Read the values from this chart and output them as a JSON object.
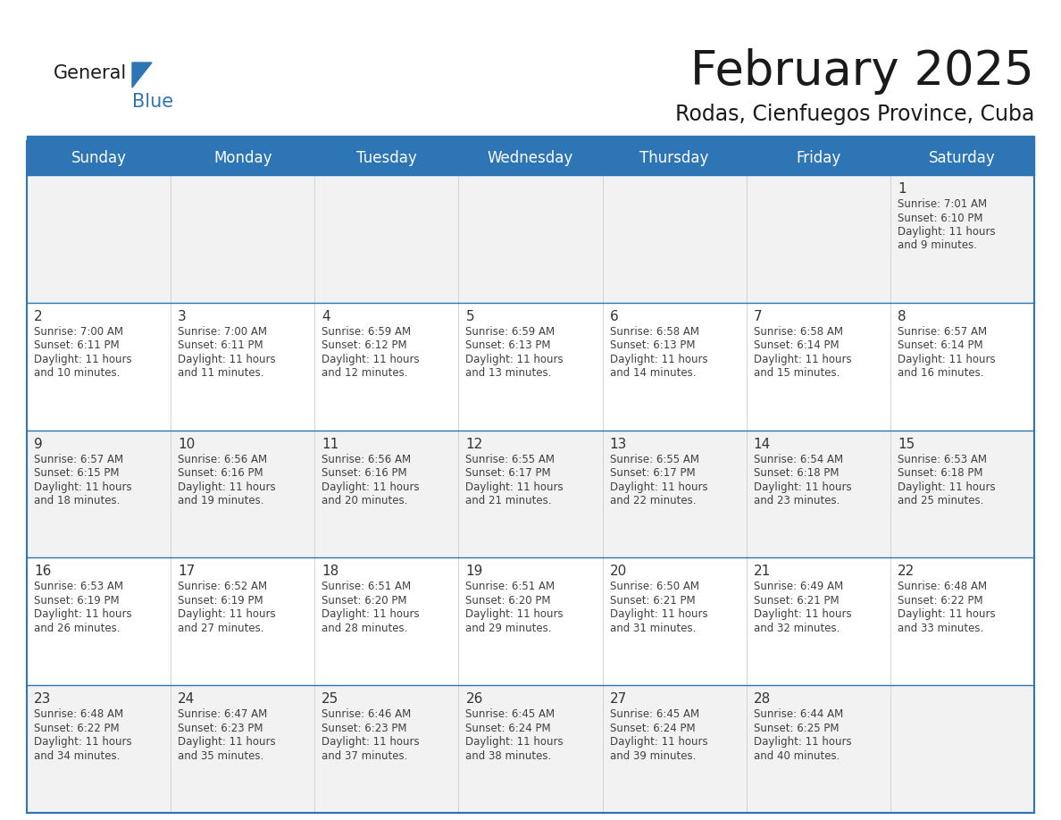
{
  "title": "February 2025",
  "subtitle": "Rodas, Cienfuegos Province, Cuba",
  "days_of_week": [
    "Sunday",
    "Monday",
    "Tuesday",
    "Wednesday",
    "Thursday",
    "Friday",
    "Saturday"
  ],
  "header_bg": "#2E75B6",
  "header_text": "#FFFFFF",
  "cell_bg_white": "#FFFFFF",
  "cell_bg_gray": "#F0F0F0",
  "divider_color": "#2E75B6",
  "text_color": "#404040",
  "day_number_color": "#333333",
  "title_color": "#1a1a1a",
  "logo_general_color": "#1a1a1a",
  "logo_blue_color": "#2E75B6",
  "logo_triangle_color": "#2E75B6",
  "calendar_data": [
    {
      "day": 1,
      "col": 6,
      "row": 0,
      "sunrise": "7:01 AM",
      "sunset": "6:10 PM",
      "daylight_h": "11 hours",
      "daylight_m": "9 minutes."
    },
    {
      "day": 2,
      "col": 0,
      "row": 1,
      "sunrise": "7:00 AM",
      "sunset": "6:11 PM",
      "daylight_h": "11 hours",
      "daylight_m": "10 minutes."
    },
    {
      "day": 3,
      "col": 1,
      "row": 1,
      "sunrise": "7:00 AM",
      "sunset": "6:11 PM",
      "daylight_h": "11 hours",
      "daylight_m": "11 minutes."
    },
    {
      "day": 4,
      "col": 2,
      "row": 1,
      "sunrise": "6:59 AM",
      "sunset": "6:12 PM",
      "daylight_h": "11 hours",
      "daylight_m": "12 minutes."
    },
    {
      "day": 5,
      "col": 3,
      "row": 1,
      "sunrise": "6:59 AM",
      "sunset": "6:13 PM",
      "daylight_h": "11 hours",
      "daylight_m": "13 minutes."
    },
    {
      "day": 6,
      "col": 4,
      "row": 1,
      "sunrise": "6:58 AM",
      "sunset": "6:13 PM",
      "daylight_h": "11 hours",
      "daylight_m": "14 minutes."
    },
    {
      "day": 7,
      "col": 5,
      "row": 1,
      "sunrise": "6:58 AM",
      "sunset": "6:14 PM",
      "daylight_h": "11 hours",
      "daylight_m": "15 minutes."
    },
    {
      "day": 8,
      "col": 6,
      "row": 1,
      "sunrise": "6:57 AM",
      "sunset": "6:14 PM",
      "daylight_h": "11 hours",
      "daylight_m": "16 minutes."
    },
    {
      "day": 9,
      "col": 0,
      "row": 2,
      "sunrise": "6:57 AM",
      "sunset": "6:15 PM",
      "daylight_h": "11 hours",
      "daylight_m": "18 minutes."
    },
    {
      "day": 10,
      "col": 1,
      "row": 2,
      "sunrise": "6:56 AM",
      "sunset": "6:16 PM",
      "daylight_h": "11 hours",
      "daylight_m": "19 minutes."
    },
    {
      "day": 11,
      "col": 2,
      "row": 2,
      "sunrise": "6:56 AM",
      "sunset": "6:16 PM",
      "daylight_h": "11 hours",
      "daylight_m": "20 minutes."
    },
    {
      "day": 12,
      "col": 3,
      "row": 2,
      "sunrise": "6:55 AM",
      "sunset": "6:17 PM",
      "daylight_h": "11 hours",
      "daylight_m": "21 minutes."
    },
    {
      "day": 13,
      "col": 4,
      "row": 2,
      "sunrise": "6:55 AM",
      "sunset": "6:17 PM",
      "daylight_h": "11 hours",
      "daylight_m": "22 minutes."
    },
    {
      "day": 14,
      "col": 5,
      "row": 2,
      "sunrise": "6:54 AM",
      "sunset": "6:18 PM",
      "daylight_h": "11 hours",
      "daylight_m": "23 minutes."
    },
    {
      "day": 15,
      "col": 6,
      "row": 2,
      "sunrise": "6:53 AM",
      "sunset": "6:18 PM",
      "daylight_h": "11 hours",
      "daylight_m": "25 minutes."
    },
    {
      "day": 16,
      "col": 0,
      "row": 3,
      "sunrise": "6:53 AM",
      "sunset": "6:19 PM",
      "daylight_h": "11 hours",
      "daylight_m": "26 minutes."
    },
    {
      "day": 17,
      "col": 1,
      "row": 3,
      "sunrise": "6:52 AM",
      "sunset": "6:19 PM",
      "daylight_h": "11 hours",
      "daylight_m": "27 minutes."
    },
    {
      "day": 18,
      "col": 2,
      "row": 3,
      "sunrise": "6:51 AM",
      "sunset": "6:20 PM",
      "daylight_h": "11 hours",
      "daylight_m": "28 minutes."
    },
    {
      "day": 19,
      "col": 3,
      "row": 3,
      "sunrise": "6:51 AM",
      "sunset": "6:20 PM",
      "daylight_h": "11 hours",
      "daylight_m": "29 minutes."
    },
    {
      "day": 20,
      "col": 4,
      "row": 3,
      "sunrise": "6:50 AM",
      "sunset": "6:21 PM",
      "daylight_h": "11 hours",
      "daylight_m": "31 minutes."
    },
    {
      "day": 21,
      "col": 5,
      "row": 3,
      "sunrise": "6:49 AM",
      "sunset": "6:21 PM",
      "daylight_h": "11 hours",
      "daylight_m": "32 minutes."
    },
    {
      "day": 22,
      "col": 6,
      "row": 3,
      "sunrise": "6:48 AM",
      "sunset": "6:22 PM",
      "daylight_h": "11 hours",
      "daylight_m": "33 minutes."
    },
    {
      "day": 23,
      "col": 0,
      "row": 4,
      "sunrise": "6:48 AM",
      "sunset": "6:22 PM",
      "daylight_h": "11 hours",
      "daylight_m": "34 minutes."
    },
    {
      "day": 24,
      "col": 1,
      "row": 4,
      "sunrise": "6:47 AM",
      "sunset": "6:23 PM",
      "daylight_h": "11 hours",
      "daylight_m": "35 minutes."
    },
    {
      "day": 25,
      "col": 2,
      "row": 4,
      "sunrise": "6:46 AM",
      "sunset": "6:23 PM",
      "daylight_h": "11 hours",
      "daylight_m": "37 minutes."
    },
    {
      "day": 26,
      "col": 3,
      "row": 4,
      "sunrise": "6:45 AM",
      "sunset": "6:24 PM",
      "daylight_h": "11 hours",
      "daylight_m": "38 minutes."
    },
    {
      "day": 27,
      "col": 4,
      "row": 4,
      "sunrise": "6:45 AM",
      "sunset": "6:24 PM",
      "daylight_h": "11 hours",
      "daylight_m": "39 minutes."
    },
    {
      "day": 28,
      "col": 5,
      "row": 4,
      "sunrise": "6:44 AM",
      "sunset": "6:25 PM",
      "daylight_h": "11 hours",
      "daylight_m": "40 minutes."
    }
  ]
}
